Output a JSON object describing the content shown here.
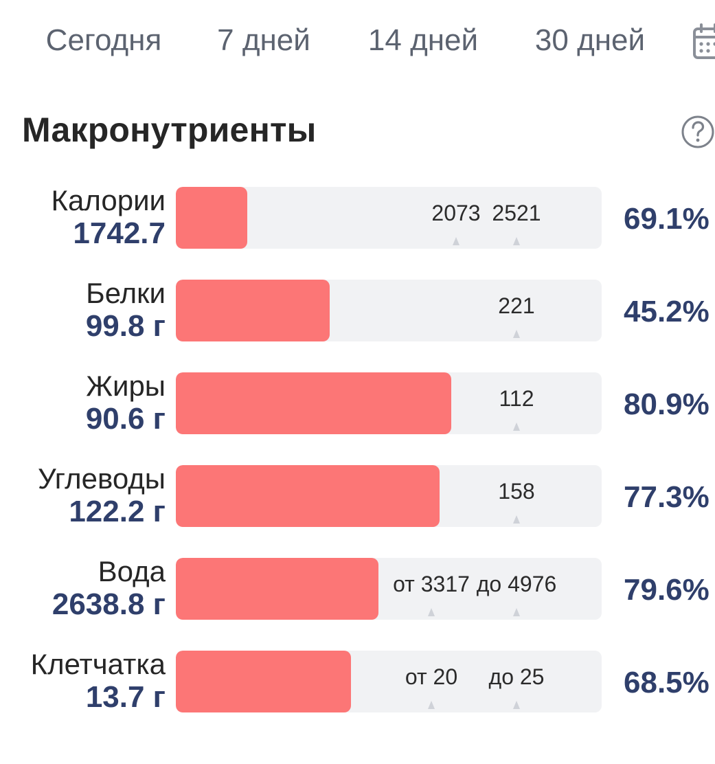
{
  "tabs": [
    {
      "label": "Сегодня",
      "active": true
    },
    {
      "label": "7 дней",
      "active": false
    },
    {
      "label": "14 дней",
      "active": false
    },
    {
      "label": "30 дней",
      "active": false
    }
  ],
  "section": {
    "title": "Макронутриенты",
    "help_icon": "question-circle-icon",
    "calendar_icon": "calendar-icon"
  },
  "colors": {
    "fill": "#fc7676",
    "track": "#f1f2f4",
    "value": "#2f3f6b",
    "active_tab": "#e8575a"
  },
  "nutrients": [
    {
      "name": "Калории",
      "value": "1742.7",
      "percent": "69.1%",
      "fill_fraction": 0.691,
      "markers": [
        {
          "text": "2073",
          "at_fraction": 0.822
        },
        {
          "text": "2521",
          "at_fraction": 1.0
        }
      ]
    },
    {
      "name": "Белки",
      "value": "99.8 г",
      "percent": "45.2%",
      "fill_fraction": 0.452,
      "markers": [
        {
          "text": "221",
          "at_fraction": 1.0
        }
      ]
    },
    {
      "name": "Жиры",
      "value": "90.6 г",
      "percent": "80.9%",
      "fill_fraction": 0.809,
      "markers": [
        {
          "text": "112",
          "at_fraction": 1.0
        }
      ]
    },
    {
      "name": "Углеводы",
      "value": "122.2 г",
      "percent": "77.3%",
      "fill_fraction": 0.773,
      "markers": [
        {
          "text": "158",
          "at_fraction": 1.0
        }
      ]
    },
    {
      "name": "Вода",
      "value": "2638.8 г",
      "percent": "79.6%",
      "fill_fraction": 0.796,
      "markers": [
        {
          "text": "от 3317",
          "at_fraction": 0.75
        },
        {
          "text": "до 4976",
          "at_fraction": 1.0
        }
      ]
    },
    {
      "name": "Клетчатка",
      "value": "13.7 г",
      "percent": "68.5%",
      "fill_fraction": 0.685,
      "markers": [
        {
          "text": "от 20",
          "at_fraction": 0.75
        },
        {
          "text": "до 25",
          "at_fraction": 1.0
        }
      ]
    }
  ]
}
